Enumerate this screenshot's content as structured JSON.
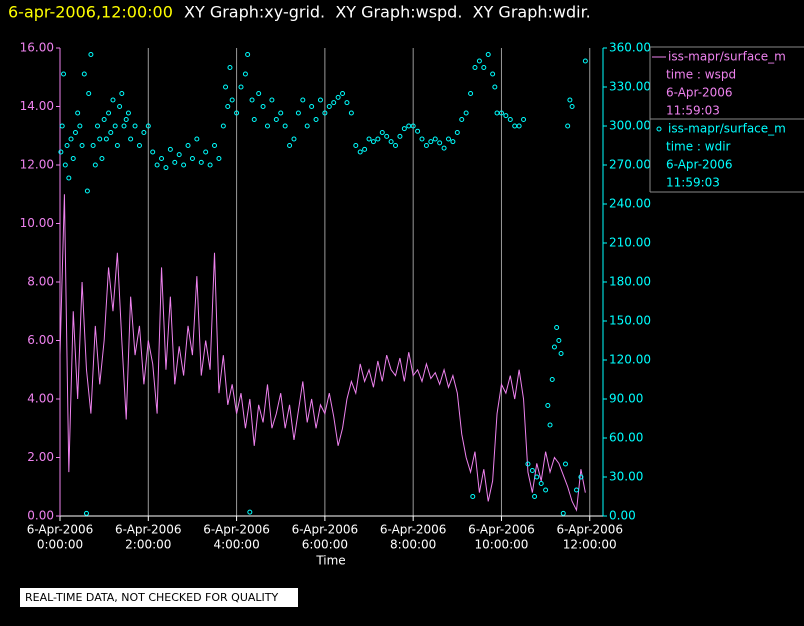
{
  "chart_data": {
    "type": "xy",
    "title_time": "6-apr-2006,12:00:00",
    "title": "XY Graph:xy-grid.  XY Graph:wspd.  XY Graph:wdir.",
    "x_label": "Time",
    "footer": "REAL-TIME DATA, NOT CHECKED FOR QUALITY",
    "grid": true,
    "xlim": [
      0,
      12.3
    ],
    "xticks": [
      {
        "value": 0,
        "label": [
          "6-Apr-2006",
          "0:00:00"
        ]
      },
      {
        "value": 2,
        "label": [
          "6-Apr-2006",
          "2:00:00"
        ]
      },
      {
        "value": 4,
        "label": [
          "6-Apr-2006",
          "4:00:00"
        ]
      },
      {
        "value": 6,
        "label": [
          "6-Apr-2006",
          "6:00:00"
        ]
      },
      {
        "value": 8,
        "label": [
          "6-Apr-2006",
          "8:00:00"
        ]
      },
      {
        "value": 10,
        "label": [
          "6-Apr-2006",
          "10:00:00"
        ]
      },
      {
        "value": 12,
        "label": [
          "6-Apr-2006",
          "12:00:00"
        ]
      }
    ],
    "ylim": [
      0,
      16
    ],
    "yticks": [
      {
        "value": 0,
        "label": "0.00"
      },
      {
        "value": 2,
        "label": "2.00"
      },
      {
        "value": 4,
        "label": "4.00"
      },
      {
        "value": 6,
        "label": "6.00"
      },
      {
        "value": 8,
        "label": "8.00"
      },
      {
        "value": 10,
        "label": "10.00"
      },
      {
        "value": 12,
        "label": "12.00"
      },
      {
        "value": 14,
        "label": "14.00"
      },
      {
        "value": 16,
        "label": "16.00"
      }
    ],
    "y2lim": [
      0,
      360
    ],
    "y2ticks": [
      {
        "value": 0,
        "label": "0.00"
      },
      {
        "value": 30,
        "label": "30.00"
      },
      {
        "value": 60,
        "label": "60.00"
      },
      {
        "value": 90,
        "label": "90.00"
      },
      {
        "value": 120,
        "label": "120.00"
      },
      {
        "value": 150,
        "label": "150.00"
      },
      {
        "value": 180,
        "label": "180.00"
      },
      {
        "value": 210,
        "label": "210.00"
      },
      {
        "value": 240,
        "label": "240.00"
      },
      {
        "value": 270,
        "label": "270.00"
      },
      {
        "value": 300,
        "label": "300.00"
      },
      {
        "value": 330,
        "label": "330.00"
      },
      {
        "value": 360,
        "label": "360.00"
      }
    ],
    "series": [
      {
        "name": "iss-mapr/surface_m",
        "legend_lines": [
          "time : wspd",
          "6-Apr-2006",
          "11:59:03"
        ],
        "kind": "line",
        "color": "#ee82ee",
        "x": [
          0,
          0.1,
          0.2,
          0.3,
          0.4,
          0.5,
          0.6,
          0.7,
          0.8,
          0.9,
          1,
          1.1,
          1.2,
          1.3,
          1.4,
          1.5,
          1.6,
          1.7,
          1.8,
          1.9,
          2,
          2.1,
          2.2,
          2.3,
          2.4,
          2.5,
          2.6,
          2.7,
          2.8,
          2.9,
          3,
          3.1,
          3.2,
          3.3,
          3.4,
          3.5,
          3.6,
          3.7,
          3.8,
          3.9,
          4,
          4.1,
          4.2,
          4.3,
          4.4,
          4.5,
          4.6,
          4.7,
          4.8,
          4.9,
          5,
          5.1,
          5.2,
          5.3,
          5.4,
          5.5,
          5.6,
          5.7,
          5.8,
          5.9,
          6,
          6.1,
          6.2,
          6.3,
          6.4,
          6.5,
          6.6,
          6.7,
          6.8,
          6.9,
          7,
          7.1,
          7.2,
          7.3,
          7.4,
          7.5,
          7.6,
          7.7,
          7.8,
          7.9,
          8,
          8.1,
          8.2,
          8.3,
          8.4,
          8.5,
          8.6,
          8.7,
          8.8,
          8.9,
          9,
          9.1,
          9.2,
          9.3,
          9.4,
          9.5,
          9.6,
          9.7,
          9.8,
          9.9,
          10,
          10.1,
          10.2,
          10.3,
          10.4,
          10.5,
          10.6,
          10.7,
          10.8,
          10.9,
          11,
          11.1,
          11.2,
          11.3,
          11.4,
          11.5,
          11.6,
          11.7,
          11.8,
          11.9
        ],
        "values": [
          5.5,
          11.0,
          1.5,
          7.0,
          4.0,
          8.0,
          5.0,
          3.5,
          6.5,
          4.5,
          6.0,
          8.5,
          7.0,
          9.0,
          6.0,
          3.3,
          7.5,
          5.5,
          6.5,
          4.5,
          6.0,
          5.2,
          3.5,
          8.5,
          5.0,
          7.5,
          4.5,
          5.8,
          4.8,
          6.5,
          5.5,
          8.2,
          4.8,
          6.0,
          5.0,
          9.0,
          4.2,
          5.5,
          3.8,
          4.5,
          3.5,
          4.2,
          3.0,
          4.0,
          2.4,
          3.8,
          3.2,
          4.5,
          3.0,
          3.5,
          4.2,
          3.0,
          3.8,
          2.6,
          3.6,
          4.6,
          3.2,
          4.0,
          3.0,
          3.8,
          3.5,
          4.2,
          3.4,
          2.4,
          3.0,
          4.0,
          4.6,
          4.2,
          5.2,
          4.6,
          5.0,
          4.4,
          5.3,
          4.6,
          5.5,
          5.0,
          4.8,
          5.4,
          4.6,
          5.6,
          4.8,
          5.0,
          4.6,
          5.2,
          4.7,
          4.9,
          4.5,
          5.0,
          4.4,
          4.8,
          4.2,
          2.8,
          2.0,
          1.5,
          2.2,
          0.8,
          1.6,
          0.5,
          1.2,
          3.5,
          4.5,
          4.2,
          4.8,
          4.0,
          5.0,
          4.0,
          1.5,
          0.8,
          1.8,
          1.2,
          2.2,
          1.5,
          2.0,
          1.8,
          1.4,
          1.0,
          0.5,
          0.2,
          1.6,
          0.8
        ]
      },
      {
        "name": "iss-mapr/surface_m",
        "legend_lines": [
          "time : wdir",
          "6-Apr-2006",
          "11:59:03"
        ],
        "kind": "scatter",
        "axis": "y2",
        "color": "#00ffff",
        "x": [
          0.02,
          0.05,
          0.08,
          0.12,
          0.16,
          0.2,
          0.25,
          0.3,
          0.35,
          0.4,
          0.45,
          0.5,
          0.55,
          0.6,
          0.62,
          0.65,
          0.7,
          0.75,
          0.8,
          0.85,
          0.9,
          0.95,
          1.0,
          1.05,
          1.1,
          1.15,
          1.2,
          1.25,
          1.3,
          1.35,
          1.4,
          1.45,
          1.5,
          1.55,
          1.6,
          1.7,
          1.8,
          1.9,
          2.0,
          2.1,
          2.2,
          2.3,
          2.4,
          2.5,
          2.6,
          2.7,
          2.8,
          2.9,
          3.0,
          3.1,
          3.2,
          3.3,
          3.4,
          3.5,
          3.6,
          3.7,
          3.75,
          3.8,
          3.85,
          3.9,
          4.0,
          4.1,
          4.2,
          4.25,
          4.3,
          4.35,
          4.4,
          4.5,
          4.6,
          4.7,
          4.8,
          4.9,
          5.0,
          5.1,
          5.2,
          5.3,
          5.4,
          5.5,
          5.6,
          5.7,
          5.8,
          5.9,
          6.0,
          6.1,
          6.2,
          6.3,
          6.4,
          6.5,
          6.6,
          6.7,
          6.8,
          6.9,
          7.0,
          7.1,
          7.2,
          7.3,
          7.4,
          7.5,
          7.6,
          7.7,
          7.8,
          7.9,
          8.0,
          8.1,
          8.2,
          8.3,
          8.4,
          8.5,
          8.6,
          8.7,
          8.8,
          8.9,
          9.0,
          9.1,
          9.2,
          9.3,
          9.35,
          9.4,
          9.5,
          9.6,
          9.7,
          9.8,
          9.85,
          9.9,
          10.0,
          10.1,
          10.2,
          10.3,
          10.4,
          10.5,
          10.6,
          10.7,
          10.75,
          10.8,
          10.9,
          11.0,
          11.05,
          11.1,
          11.15,
          11.2,
          11.25,
          11.3,
          11.35,
          11.4,
          11.45,
          11.5,
          11.55,
          11.6,
          11.7,
          11.8,
          11.9
        ],
        "values": [
          280,
          300,
          340,
          270,
          285,
          260,
          290,
          275,
          295,
          310,
          300,
          285,
          340,
          2,
          250,
          325,
          355,
          285,
          270,
          300,
          290,
          275,
          305,
          290,
          310,
          295,
          320,
          300,
          285,
          315,
          325,
          300,
          305,
          310,
          290,
          300,
          285,
          295,
          300,
          280,
          270,
          275,
          268,
          282,
          272,
          278,
          270,
          285,
          275,
          290,
          272,
          280,
          270,
          285,
          275,
          300,
          330,
          315,
          345,
          320,
          310,
          330,
          340,
          355,
          3,
          320,
          305,
          325,
          315,
          300,
          320,
          305,
          310,
          300,
          285,
          290,
          310,
          320,
          300,
          315,
          305,
          320,
          310,
          315,
          318,
          322,
          325,
          318,
          310,
          285,
          280,
          282,
          290,
          288,
          290,
          295,
          292,
          288,
          285,
          292,
          298,
          300,
          300,
          296,
          290,
          285,
          288,
          290,
          287,
          283,
          290,
          288,
          295,
          305,
          310,
          325,
          15,
          345,
          350,
          345,
          355,
          340,
          330,
          310,
          310,
          308,
          305,
          300,
          300,
          305,
          40,
          35,
          15,
          30,
          25,
          20,
          85,
          70,
          105,
          130,
          145,
          135,
          125,
          2,
          40,
          300,
          320,
          315,
          20,
          30,
          350
        ]
      }
    ]
  }
}
